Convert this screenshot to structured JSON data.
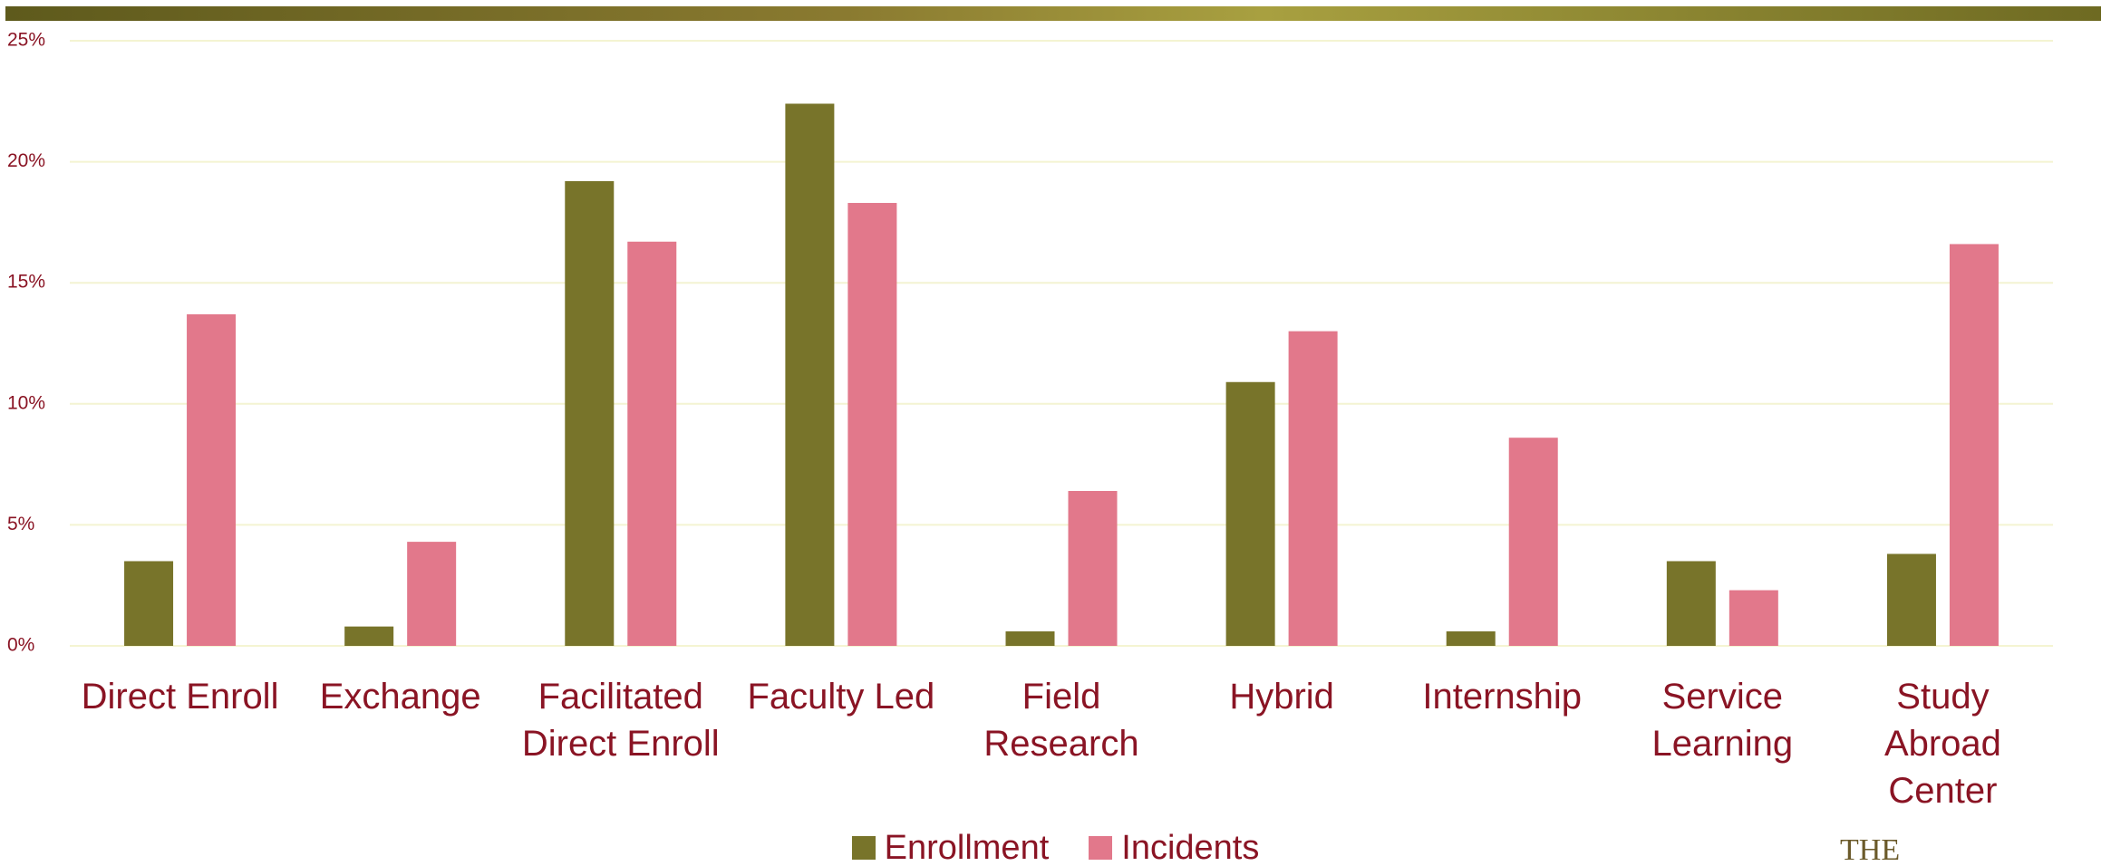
{
  "chart_data": {
    "type": "bar",
    "categories": [
      "Direct Enroll",
      "Exchange",
      "Facilitated Direct Enroll",
      "Faculty Led",
      "Field Research",
      "Hybrid",
      "Internship",
      "Service Learning",
      "Study Abroad Center"
    ],
    "series": [
      {
        "name": "Enrollment",
        "color": "#78742a",
        "values": [
          3.5,
          0.8,
          19.2,
          22.4,
          0.6,
          10.9,
          0.6,
          3.5,
          3.8
        ]
      },
      {
        "name": "Incidents",
        "color": "#e2788b",
        "values": [
          13.7,
          4.3,
          16.7,
          18.3,
          6.4,
          13.0,
          8.6,
          2.3,
          16.6
        ]
      }
    ],
    "ylim": [
      0,
      25
    ],
    "yticks": [
      {
        "value": 0,
        "label": "0%"
      },
      {
        "value": 5,
        "label": "5%"
      },
      {
        "value": 10,
        "label": "10%"
      },
      {
        "value": 15,
        "label": "15%"
      },
      {
        "value": 20,
        "label": "20%"
      },
      {
        "value": 25,
        "label": "25%"
      }
    ],
    "grid": true,
    "legend": "bottom"
  },
  "logo_text": "THE"
}
